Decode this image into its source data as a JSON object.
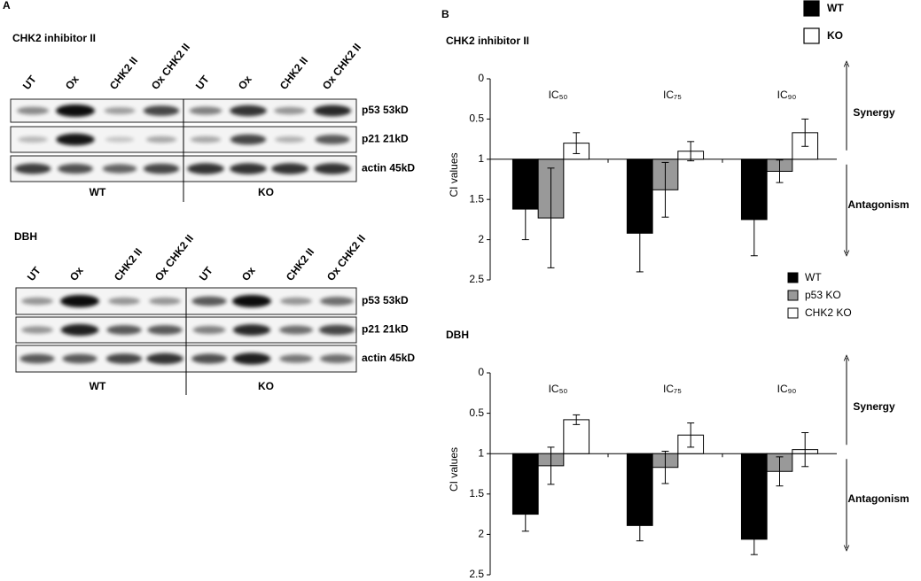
{
  "panel_a": {
    "label": "A",
    "blots": [
      {
        "title": "CHK2 inhibitor II",
        "lanes": [
          "UT",
          "Ox",
          "CHK2 II",
          "Ox CHK2 II",
          "UT",
          "Ox",
          "CHK2 II",
          "Ox CHK2 II"
        ],
        "rows": [
          "p53 53kD",
          "p21 21kD",
          "actin 45kD"
        ],
        "groups": [
          "WT",
          "KO"
        ]
      },
      {
        "title": "DBH",
        "lanes": [
          "UT",
          "Ox",
          "CHK2 II",
          "Ox CHK2 II",
          "UT",
          "Ox",
          "CHK2 II",
          "Ox CHK2 II"
        ],
        "rows": [
          "p53 53kD",
          "p21 21kD",
          "actin 45kD"
        ],
        "groups": [
          "WT",
          "KO"
        ]
      }
    ]
  },
  "panel_b": {
    "label": "B",
    "legend": [
      {
        "label": "WT",
        "color": "#000000"
      },
      {
        "label": "KO",
        "color": "#ffffff"
      }
    ]
  },
  "chart_data": [
    {
      "type": "bar",
      "title": "CHK2 inhibitor II",
      "y_label": "CI values",
      "categories": [
        "IC₅₀",
        "IC₇₅",
        "IC₉₀"
      ],
      "annotations": [
        "Synergy",
        "Antagonism"
      ],
      "ylim": [
        2.5,
        0
      ],
      "yticks": [
        0,
        0.5,
        1,
        1.5,
        2,
        2.5
      ],
      "baseline": 1,
      "legend": "lower right",
      "series": [
        {
          "name": "WT",
          "color": "#000000",
          "values": [
            1.62,
            1.92,
            1.75
          ],
          "errors": [
            0.38,
            0.48,
            0.45
          ]
        },
        {
          "name": "p53 KO",
          "color": "#999999",
          "values": [
            1.73,
            1.38,
            1.15
          ],
          "errors": [
            0.62,
            0.34,
            0.14
          ]
        },
        {
          "name": "CHK2 KO",
          "color": "#ffffff",
          "values": [
            0.8,
            0.9,
            0.67
          ],
          "errors": [
            0.13,
            0.12,
            0.17
          ]
        }
      ]
    },
    {
      "type": "bar",
      "title": "DBH",
      "y_label": "CI values",
      "categories": [
        "IC₅₀",
        "IC₇₅",
        "IC₉₀"
      ],
      "annotations": [
        "Synergy",
        "Antagonism"
      ],
      "ylim": [
        2.5,
        0
      ],
      "yticks": [
        0,
        0.5,
        1,
        1.5,
        2,
        2.5
      ],
      "baseline": 1,
      "series": [
        {
          "color": "#000000",
          "values": [
            1.75,
            1.89,
            2.06
          ],
          "errors": [
            0.21,
            0.19,
            0.19
          ]
        },
        {
          "color": "#999999",
          "values": [
            1.15,
            1.17,
            1.22
          ],
          "errors": [
            0.23,
            0.2,
            0.18
          ]
        },
        {
          "color": "#ffffff",
          "values": [
            0.58,
            0.77,
            0.95
          ],
          "errors": [
            0.06,
            0.15,
            0.21
          ]
        }
      ]
    }
  ]
}
